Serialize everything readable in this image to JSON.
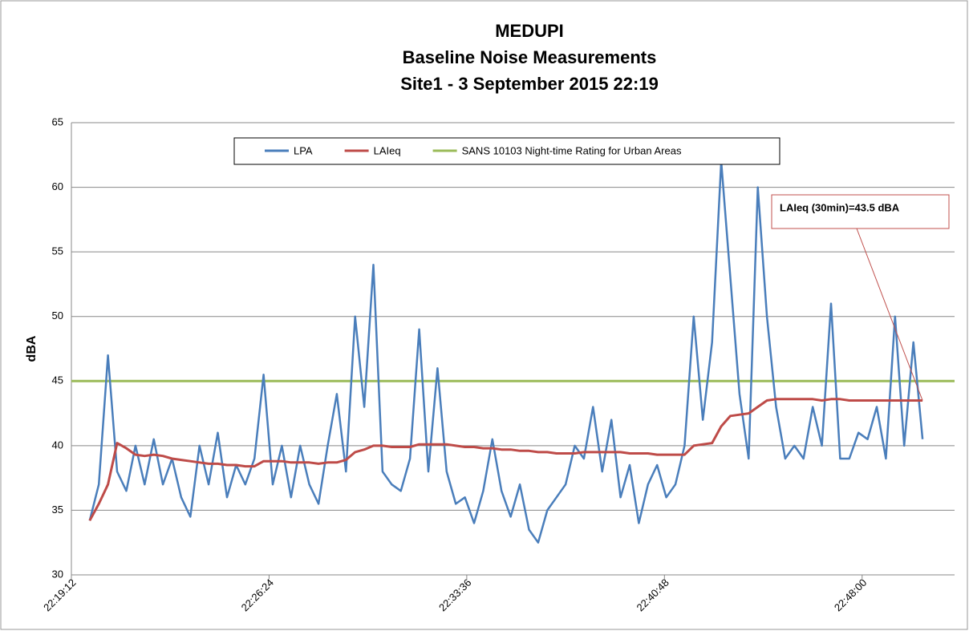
{
  "chart_data": {
    "type": "line",
    "title": [
      "MEDUPI",
      "Baseline Noise Measurements",
      "Site1 - 3 September 2015 22:19"
    ],
    "y_label": "dBA",
    "x": [
      "22:19:52",
      "22:20:12",
      "22:20:32",
      "22:20:52",
      "22:21:12",
      "22:21:32",
      "22:21:52",
      "22:22:12",
      "22:22:32",
      "22:22:52",
      "22:23:12",
      "22:23:32",
      "22:23:52",
      "22:24:12",
      "22:24:32",
      "22:24:52",
      "22:25:12",
      "22:25:32",
      "22:25:52",
      "22:26:12",
      "22:26:32",
      "22:26:52",
      "22:27:12",
      "22:27:32",
      "22:27:52",
      "22:28:12",
      "22:28:32",
      "22:28:52",
      "22:29:12",
      "22:29:32",
      "22:29:52",
      "22:30:12",
      "22:30:32",
      "22:30:52",
      "22:31:12",
      "22:31:32",
      "22:31:52",
      "22:32:12",
      "22:32:32",
      "22:32:52",
      "22:33:12",
      "22:33:32",
      "22:33:52",
      "22:34:12",
      "22:34:32",
      "22:34:52",
      "22:35:12",
      "22:35:32",
      "22:35:52",
      "22:36:12",
      "22:36:32",
      "22:36:52",
      "22:37:12",
      "22:37:32",
      "22:37:52",
      "22:38:12",
      "22:38:32",
      "22:38:52",
      "22:39:12",
      "22:39:32",
      "22:39:52",
      "22:40:12",
      "22:40:32",
      "22:40:52",
      "22:41:12",
      "22:41:32",
      "22:41:52",
      "22:42:12",
      "22:42:32",
      "22:42:52",
      "22:43:12",
      "22:43:32",
      "22:43:52",
      "22:44:12",
      "22:44:32",
      "22:44:52",
      "22:45:12",
      "22:45:32",
      "22:45:52",
      "22:46:12",
      "22:46:32",
      "22:46:52",
      "22:47:12",
      "22:47:32",
      "22:47:52",
      "22:48:12",
      "22:48:32",
      "22:48:52",
      "22:49:12",
      "22:49:32",
      "22:49:52",
      "22:50:12"
    ],
    "series": [
      {
        "name": "LPA",
        "color": "#4a7ebb",
        "values": [
          34.2,
          37,
          47,
          38,
          36.5,
          40,
          37,
          40.5,
          37,
          39,
          36,
          34.5,
          40,
          37,
          41,
          36,
          38.5,
          37,
          39,
          45.5,
          37,
          40,
          36,
          40,
          37,
          35.5,
          40,
          44,
          38,
          50,
          43,
          54,
          38,
          37,
          36.5,
          39,
          49,
          38,
          46,
          38,
          35.5,
          36,
          34,
          36.5,
          40.5,
          36.5,
          34.5,
          37,
          33.5,
          32.5,
          35,
          36,
          37,
          40,
          39,
          43,
          38,
          42,
          36,
          38.5,
          34,
          37,
          38.5,
          36,
          37,
          40,
          50,
          42,
          48,
          62,
          53,
          44,
          39,
          60,
          50,
          43,
          39,
          40,
          39,
          43,
          40,
          51,
          39,
          39,
          41,
          40.5,
          43,
          39,
          50,
          40,
          48,
          40.5
        ]
      },
      {
        "name": "LAIeq",
        "color": "#be4b48",
        "values": [
          34.2,
          35.5,
          37,
          40.2,
          39.8,
          39.3,
          39.2,
          39.3,
          39.2,
          39,
          38.9,
          38.8,
          38.7,
          38.6,
          38.6,
          38.5,
          38.5,
          38.4,
          38.4,
          38.8,
          38.8,
          38.8,
          38.7,
          38.7,
          38.7,
          38.6,
          38.7,
          38.7,
          38.9,
          39.5,
          39.7,
          40,
          40,
          39.9,
          39.9,
          39.9,
          40.1,
          40.1,
          40.1,
          40.1,
          40,
          39.9,
          39.9,
          39.8,
          39.8,
          39.7,
          39.7,
          39.6,
          39.6,
          39.5,
          39.5,
          39.4,
          39.4,
          39.4,
          39.5,
          39.5,
          39.5,
          39.5,
          39.5,
          39.4,
          39.4,
          39.4,
          39.3,
          39.3,
          39.3,
          39.3,
          40,
          40.1,
          40.2,
          41.5,
          42.3,
          42.4,
          42.5,
          43,
          43.5,
          43.6,
          43.6,
          43.6,
          43.6,
          43.6,
          43.5,
          43.6,
          43.6,
          43.5,
          43.5,
          43.5,
          43.5,
          43.5,
          43.5,
          43.5,
          43.5,
          43.5
        ]
      }
    ],
    "reference_line": {
      "name": "SANS 10103 Night-time Rating for Urban Areas",
      "color": "#9bbb59",
      "value": 45
    },
    "annotation": "LAIeq (30min)=43.5 dBA",
    "xlim": [
      "22:19:12",
      "22:51:22"
    ],
    "xticks": [
      "22:19:12",
      "22:26:24",
      "22:33:36",
      "22:40:48",
      "22:48:00"
    ],
    "ylim": [
      30,
      65
    ],
    "yticks": [
      30,
      35,
      40,
      45,
      50,
      55,
      60,
      65
    ],
    "grid": true
  }
}
